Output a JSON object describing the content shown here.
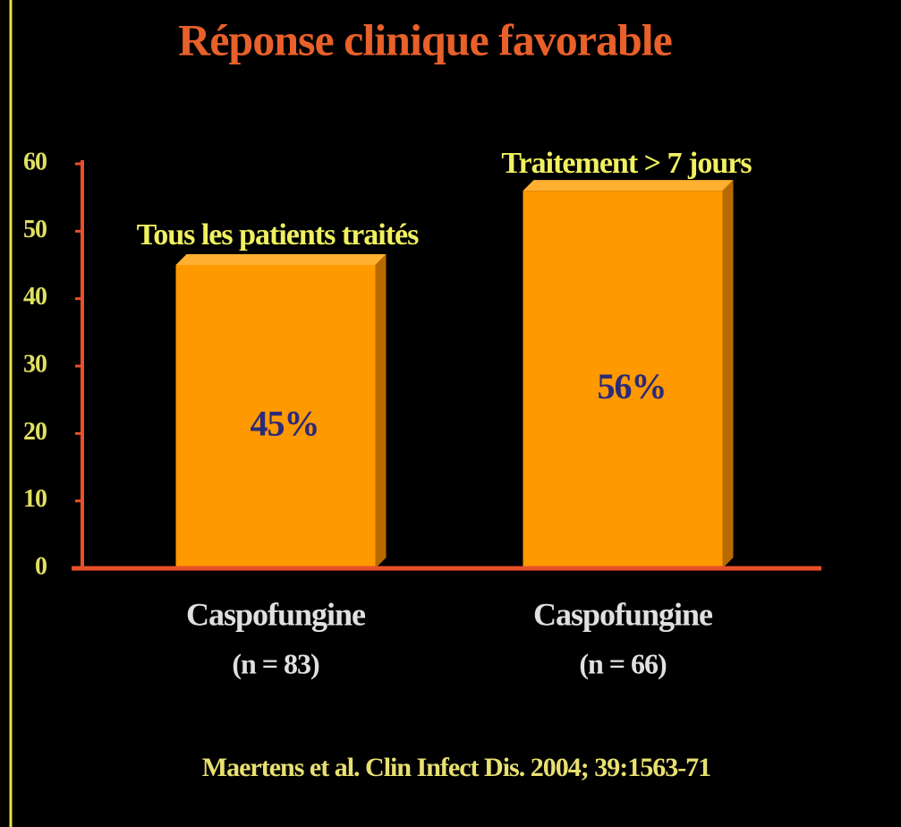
{
  "chart_data": {
    "type": "bar",
    "title": "Réponse  clinique favorable",
    "categories": [
      "Caspofungine",
      "Caspofungine"
    ],
    "category_sublabels": [
      "(n = 83)",
      "(n = 66)"
    ],
    "group_labels": [
      "Tous les patients traités",
      "Traitement  > 7 jours"
    ],
    "values": [
      45,
      56
    ],
    "value_labels": [
      "45%",
      "56%"
    ],
    "color": "#ff9900",
    "ylim": [
      0,
      60
    ],
    "yticks": [
      0,
      10,
      20,
      30,
      40,
      50,
      60
    ],
    "source": "Maertens et al.  Clin Infect Dis. 2004; 39:1563-71"
  }
}
